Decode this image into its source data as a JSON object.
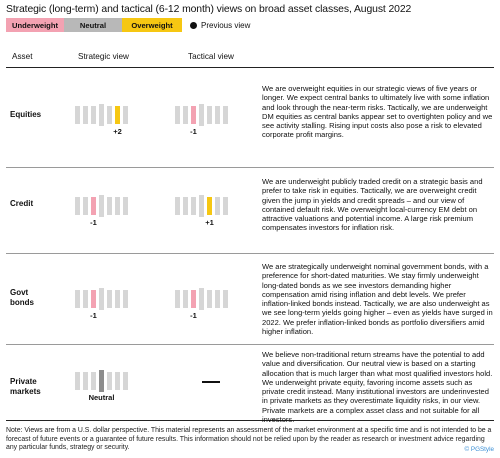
{
  "title": "Strategic (long-term) and tactical (6-12 month) views on broad asset classes, August 2022",
  "legend": {
    "underweight": "Underweight",
    "neutral": "Neutral",
    "overweight": "Overweight",
    "previous_view": "Previous view"
  },
  "headers": {
    "asset": "Asset",
    "strategic": "Strategic view",
    "tactical": "Tactical view"
  },
  "colors": {
    "underweight": "#f3a2b2",
    "neutral": "#8c8c8c",
    "overweight": "#f6c712",
    "inactive": "#d6d6d6"
  },
  "rows": [
    {
      "asset": "Equities",
      "strategic": {
        "value": 2,
        "label": "+2"
      },
      "tactical": {
        "value": -1,
        "label": "-1"
      },
      "description": "We are overweight equities in our strategic views of five years or longer. We expect central banks to ultimately live with some inflation and look through the near-term risks. Tactically, we are underweight DM equities as central banks appear set to overtighten policy and we see activity stalling. Rising input costs also pose a risk to elevated corporate profit margins."
    },
    {
      "asset": "Credit",
      "strategic": {
        "value": -1,
        "label": "-1"
      },
      "tactical": {
        "value": 1,
        "label": "+1"
      },
      "description": "We are underweight publicly traded credit on a strategic basis and prefer to take risk in equities. Tactically, we are overweight credit given the jump in yields and credit spreads – and our view of contained default risk. We overweight local-currency EM debt on attractive valuations and potential income. A large risk premium compensates investors for inflation risk."
    },
    {
      "asset": "Govt bonds",
      "asset_line1": "Govt",
      "asset_line2": "bonds",
      "strategic": {
        "value": -1,
        "label": "-1"
      },
      "tactical": {
        "value": -1,
        "label": "-1"
      },
      "description": "We are strategically underweight nominal government bonds, with a preference for short-dated maturities. We stay firmly underweight long-dated bonds as we see investors demanding higher compensation amid rising inflation and debt levels. We prefer inflation-linked bonds instead. Tactically, we are also underweight as we see long-term yields going higher – even as yields have surged in 2022. We prefer inflation-linked bonds as portfolio diversifiers amid higher inflation."
    },
    {
      "asset": "Private markets",
      "asset_line1": "Private",
      "asset_line2": "markets",
      "strategic": {
        "value": 0,
        "label": "Neutral"
      },
      "tactical": {
        "value": null,
        "label": ""
      },
      "description": "We believe non-traditional return streams have the potential to add value and diversification. Our neutral view is based on a starting allocation that is much larger than what most qualified investors hold. We underweight private equity, favoring income assets such as private credit instead. Many institutional investors are underinvested in private markets as they overestimate liquidity risks, in our view. Private markets are a complex asset class and not suitable for all investors."
    }
  ],
  "note": "Note: Views are from a U.S. dollar perspective. This material represents an assessment of the market environment at a specific time and is not intended to be a forecast of future events or a guarantee of future results. This information should not be relied upon by the reader as research or investment advice regarding any particular funds, strategy or security.",
  "brand": "© PGStyle"
}
